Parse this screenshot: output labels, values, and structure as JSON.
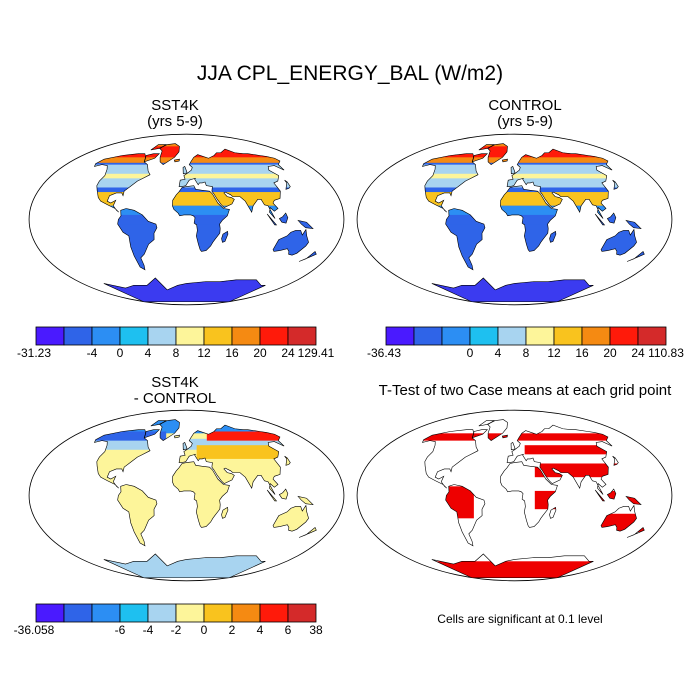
{
  "title": "JJA CPL_ENERGY_BAL (W/m2)",
  "panels": {
    "sst4k": {
      "title": "SST4K",
      "subtitle": "(yrs 5-9)"
    },
    "control": {
      "title": "CONTROL",
      "subtitle": "(yrs 5-9)"
    },
    "diff": {
      "title": "SST4K",
      "subtitle": "- CONTROL"
    },
    "ttest": {
      "title": "T-Test of two Case means at each grid point"
    }
  },
  "colorbars": {
    "sst4k": {
      "min_label": "-31.23",
      "max_label": "129.41",
      "ticks": [
        "-4",
        "0",
        "4",
        "8",
        "12",
        "16",
        "20",
        "24"
      ],
      "colors": [
        "#4a1aff",
        "#2f64e8",
        "#2c8ef3",
        "#1ec0f0",
        "#a8d4f0",
        "#fdf59a",
        "#f9c31e",
        "#f58a12",
        "#ff1a0a",
        "#d42a2a"
      ]
    },
    "control": {
      "min_label": "-36.43",
      "max_label": "110.83",
      "ticks": [
        "0",
        "4",
        "8",
        "12",
        "16",
        "20",
        "24"
      ],
      "colors": [
        "#4a1aff",
        "#2f64e8",
        "#2c8ef3",
        "#1ec0f0",
        "#a8d4f0",
        "#fdf59a",
        "#f9c31e",
        "#f58a12",
        "#ff1a0a",
        "#d42a2a"
      ]
    },
    "diff": {
      "min_label": "-36.058",
      "max_label": "38",
      "ticks": [
        "-6",
        "-4",
        "-2",
        "0",
        "2",
        "4",
        "6"
      ],
      "colors": [
        "#4a1aff",
        "#2f64e8",
        "#2c8ef3",
        "#1ec0f0",
        "#a8d4f0",
        "#fdf59a",
        "#f9c31e",
        "#f58a12",
        "#ff1a0a",
        "#d42a2a"
      ]
    }
  },
  "significance_note": "Cells are significant at 0.1 level",
  "colors": {
    "significant": "#ee0000",
    "coast": "#000000"
  }
}
